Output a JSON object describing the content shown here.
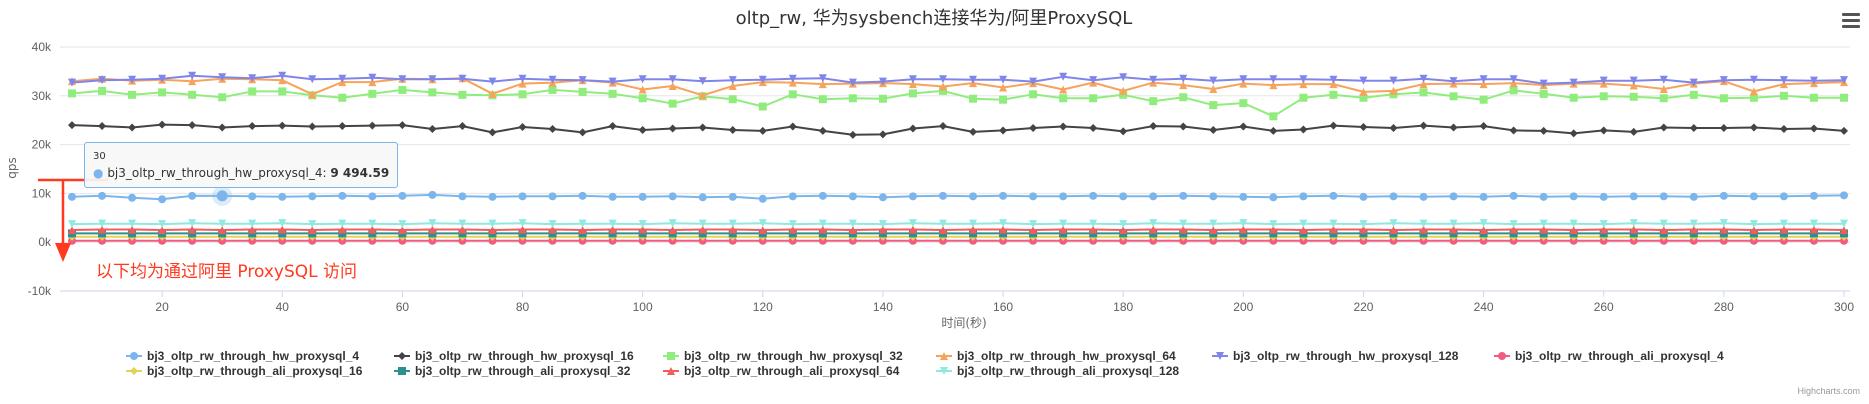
{
  "chart_data": {
    "type": "line",
    "title": "oltp_rw, 华为sysbench连接华为/阿里ProxySQL",
    "xlabel": "时间(秒)",
    "ylabel": "qps",
    "xlim": [
      3,
      301
    ],
    "ylim": [
      -10000,
      40000
    ],
    "x_ticks": [
      20,
      40,
      60,
      80,
      100,
      120,
      140,
      160,
      180,
      200,
      220,
      240,
      260,
      280,
      300
    ],
    "y_ticks": [
      -10000,
      0,
      10000,
      20000,
      30000,
      40000
    ],
    "y_tick_labels": [
      "-10k",
      "0k",
      "10k",
      "20k",
      "30k",
      "40k"
    ],
    "grid": true,
    "legend_position": "bottom",
    "x": [
      5,
      10,
      15,
      20,
      25,
      30,
      35,
      40,
      45,
      50,
      55,
      60,
      65,
      70,
      75,
      80,
      85,
      90,
      95,
      100,
      105,
      110,
      115,
      120,
      125,
      130,
      135,
      140,
      145,
      150,
      155,
      160,
      165,
      170,
      175,
      180,
      185,
      190,
      195,
      200,
      205,
      210,
      215,
      220,
      225,
      230,
      235,
      240,
      245,
      250,
      255,
      260,
      265,
      270,
      275,
      280,
      285,
      290,
      295,
      300
    ],
    "series": [
      {
        "name": "bj3_oltp_rw_through_hw_proxysql_4",
        "color": "#7cb5ec",
        "marker": "circle",
        "values": [
          9300,
          9500,
          9100,
          8800,
          9500,
          9494.59,
          9400,
          9300,
          9400,
          9500,
          9400,
          9500,
          9700,
          9400,
          9300,
          9400,
          9400,
          9500,
          9300,
          9300,
          9400,
          9200,
          9300,
          8900,
          9400,
          9500,
          9400,
          9200,
          9400,
          9500,
          9400,
          9500,
          9400,
          9400,
          9500,
          9400,
          9400,
          9500,
          9400,
          9300,
          9200,
          9400,
          9500,
          9300,
          9400,
          9300,
          9400,
          9300,
          9500,
          9300,
          9400,
          9300,
          9400,
          9400,
          9300,
          9500,
          9400,
          9400,
          9500,
          9600
        ]
      },
      {
        "name": "bj3_oltp_rw_through_hw_proxysql_16",
        "color": "#434348",
        "marker": "diamond",
        "values": [
          24000,
          23800,
          23500,
          24100,
          24000,
          23500,
          23800,
          23900,
          23700,
          23800,
          23900,
          24000,
          23200,
          23800,
          22500,
          23600,
          23200,
          22500,
          23800,
          23000,
          23300,
          23500,
          23000,
          22800,
          23700,
          22800,
          22000,
          22100,
          23300,
          23800,
          22600,
          22900,
          23400,
          23700,
          23400,
          22700,
          23800,
          23700,
          23000,
          23700,
          22800,
          23100,
          23900,
          23600,
          23400,
          23900,
          23500,
          23800,
          22900,
          22800,
          22300,
          22900,
          22600,
          23500,
          23400,
          23400,
          23500,
          23200,
          23300,
          22800
        ]
      },
      {
        "name": "bj3_oltp_rw_through_hw_proxysql_32",
        "color": "#90ed7d",
        "marker": "square",
        "values": [
          30500,
          31000,
          30200,
          30700,
          30200,
          29700,
          30900,
          30900,
          30100,
          29600,
          30400,
          31200,
          30700,
          30200,
          30100,
          30300,
          31200,
          30800,
          30400,
          29500,
          28400,
          29900,
          29300,
          27800,
          30300,
          29300,
          29500,
          29400,
          30500,
          31000,
          29400,
          29200,
          30300,
          29500,
          29500,
          30200,
          28900,
          29700,
          28100,
          28500,
          25800,
          29600,
          30200,
          29600,
          30300,
          30700,
          29900,
          29200,
          31100,
          30400,
          29600,
          29900,
          29800,
          29500,
          30200,
          29500,
          29600,
          30000,
          29600,
          29600
        ]
      },
      {
        "name": "bj3_oltp_rw_through_hw_proxysql_64",
        "color": "#f7a35c",
        "marker": "triangle",
        "values": [
          33000,
          33500,
          33100,
          33300,
          33000,
          33500,
          33400,
          33200,
          30300,
          32800,
          32800,
          33500,
          33400,
          33600,
          30400,
          32500,
          32700,
          33200,
          32700,
          31300,
          32000,
          30100,
          32000,
          32800,
          32700,
          32400,
          32500,
          32600,
          32400,
          31900,
          32600,
          31700,
          32600,
          31300,
          32700,
          31000,
          32700,
          32200,
          31400,
          32500,
          32200,
          32400,
          32400,
          30800,
          31000,
          32400,
          32500,
          32400,
          32600,
          32200,
          32500,
          32500,
          32100,
          31400,
          32500,
          33000,
          30900,
          32400,
          32600,
          32800
        ]
      },
      {
        "name": "bj3_oltp_rw_through_hw_proxysql_128",
        "color": "#8085e9",
        "marker": "triangle-down",
        "values": [
          32700,
          33200,
          33300,
          33500,
          34100,
          33800,
          33600,
          34100,
          33400,
          33500,
          33700,
          33400,
          33400,
          33500,
          32900,
          33500,
          33300,
          33200,
          32900,
          33400,
          33400,
          33000,
          33200,
          33300,
          33500,
          33600,
          32700,
          32900,
          33400,
          33400,
          33300,
          33300,
          32900,
          33900,
          33200,
          33800,
          33300,
          33500,
          33100,
          33400,
          33400,
          33400,
          33300,
          33100,
          33100,
          33500,
          33000,
          33400,
          33400,
          32500,
          32700,
          33100,
          33100,
          33300,
          32700,
          33200,
          33300,
          33200,
          33100,
          33200
        ]
      },
      {
        "name": "bj3_oltp_rw_through_ali_proxysql_4",
        "color": "#f15c80",
        "marker": "circle",
        "values": [
          300,
          300,
          300,
          300,
          300,
          300,
          300,
          300,
          300,
          300,
          300,
          300,
          300,
          300,
          300,
          300,
          300,
          300,
          300,
          300,
          300,
          300,
          300,
          300,
          300,
          300,
          300,
          300,
          300,
          300,
          300,
          300,
          300,
          300,
          300,
          300,
          300,
          300,
          300,
          300,
          300,
          300,
          300,
          300,
          300,
          300,
          300,
          300,
          300,
          300,
          300,
          300,
          300,
          300,
          300,
          300,
          300,
          300,
          300,
          300
        ]
      },
      {
        "name": "bj3_oltp_rw_through_ali_proxysql_16",
        "color": "#e4d354",
        "marker": "diamond",
        "values": [
          1100,
          1100,
          1100,
          1100,
          1100,
          1100,
          1100,
          1100,
          1100,
          1100,
          1100,
          1100,
          1100,
          1100,
          1100,
          1100,
          1100,
          1100,
          1100,
          1100,
          1100,
          1100,
          1100,
          1100,
          1100,
          1100,
          1100,
          1100,
          1100,
          1100,
          1100,
          1100,
          1100,
          1100,
          1100,
          1100,
          1100,
          1100,
          1100,
          1100,
          1100,
          1100,
          1100,
          1100,
          1100,
          1100,
          1100,
          1100,
          1100,
          1100,
          1100,
          1100,
          1100,
          1100,
          1100,
          1100,
          1100,
          1100,
          1100,
          1100
        ]
      },
      {
        "name": "bj3_oltp_rw_through_ali_proxysql_32",
        "color": "#2b908f",
        "marker": "square",
        "values": [
          1800,
          1800,
          1800,
          1800,
          1800,
          1800,
          1800,
          1800,
          1800,
          1800,
          1800,
          1800,
          1800,
          1800,
          1800,
          1800,
          1800,
          1800,
          1800,
          1800,
          1800,
          1800,
          1800,
          1800,
          1800,
          1800,
          1800,
          1800,
          1800,
          1800,
          1800,
          1800,
          1800,
          1800,
          1800,
          1800,
          1800,
          1800,
          1800,
          1800,
          1800,
          1800,
          1800,
          1800,
          1800,
          1800,
          1800,
          1800,
          1800,
          1800,
          1800,
          1800,
          1800,
          1800,
          1800,
          1800,
          1800,
          1800,
          1800,
          1800
        ]
      },
      {
        "name": "bj3_oltp_rw_through_ali_proxysql_64",
        "color": "#f45b5b",
        "marker": "triangle",
        "values": [
          2500,
          2600,
          2600,
          2500,
          2600,
          2500,
          2600,
          2600,
          2500,
          2600,
          2600,
          2500,
          2600,
          2600,
          2500,
          2600,
          2600,
          2500,
          2600,
          2600,
          2500,
          2600,
          2600,
          2500,
          2600,
          2600,
          2500,
          2600,
          2600,
          2500,
          2600,
          2600,
          2500,
          2600,
          2600,
          2500,
          2600,
          2600,
          2500,
          2600,
          2600,
          2500,
          2600,
          2600,
          2500,
          2600,
          2600,
          2500,
          2600,
          2600,
          2500,
          2600,
          2600,
          2500,
          2600,
          2600,
          2500,
          2600,
          2600,
          2500
        ]
      },
      {
        "name": "bj3_oltp_rw_through_ali_proxysql_128",
        "color": "#91e8e1",
        "marker": "triangle-down",
        "values": [
          3700,
          3800,
          3800,
          3700,
          3900,
          3800,
          3800,
          3900,
          3700,
          3800,
          3800,
          3700,
          3900,
          3800,
          3800,
          3900,
          3700,
          3800,
          3800,
          3700,
          3900,
          3800,
          3800,
          3900,
          3700,
          3800,
          3800,
          3700,
          3900,
          3800,
          3800,
          3900,
          3700,
          3800,
          3800,
          3700,
          3900,
          3800,
          3800,
          3900,
          3700,
          3800,
          3800,
          3700,
          3900,
          3800,
          3800,
          3900,
          3700,
          3800,
          3800,
          3700,
          3900,
          3800,
          3800,
          3900,
          3700,
          3800,
          3800,
          3800
        ]
      }
    ],
    "tooltip": {
      "x_value": "30",
      "series_name": "bj3_oltp_rw_through_hw_proxysql_4",
      "value_text": "9 494.59",
      "highlight_series": 0,
      "highlight_x": 30
    },
    "annotation": "以下均为通过阿里 ProxySQL 访问",
    "credits": "Highcharts.com"
  },
  "menu": {
    "icon": "hamburger-menu-icon"
  }
}
